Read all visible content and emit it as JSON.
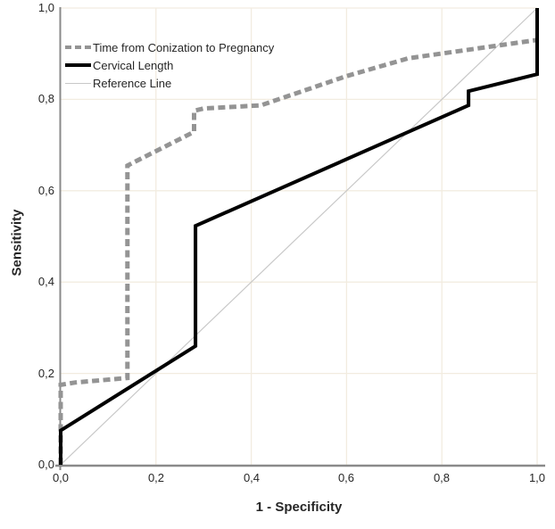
{
  "chart_data": {
    "type": "line",
    "title": "",
    "xlabel": "1 - Specificity",
    "ylabel": "Sensitivity",
    "xlim": [
      0,
      1
    ],
    "ylim": [
      0,
      1
    ],
    "grid": true,
    "legend_position": "top-left",
    "x_ticks": {
      "values": [
        0,
        0.2,
        0.4,
        0.6,
        0.8,
        1.0
      ],
      "labels": [
        "0,0",
        "0,2",
        "0,4",
        "0,6",
        "0,8",
        "1,0"
      ]
    },
    "y_ticks": {
      "values": [
        0,
        0.2,
        0.4,
        0.6,
        0.8,
        1.0
      ],
      "labels": [
        "0,0",
        "0,2",
        "0,4",
        "0,6",
        "0,8",
        "1,0"
      ]
    },
    "series": [
      {
        "name": "Time from Conization to Pregnancy",
        "style": "dashed",
        "color": "#949494",
        "width": 5,
        "points": [
          [
            0,
            0
          ],
          [
            0,
            0.175
          ],
          [
            0.03,
            0.18
          ],
          [
            0.14,
            0.19
          ],
          [
            0.14,
            0.655
          ],
          [
            0.28,
            0.729
          ],
          [
            0.28,
            0.775
          ],
          [
            0.3,
            0.78
          ],
          [
            0.42,
            0.787
          ],
          [
            0.6,
            0.851
          ],
          [
            0.73,
            0.89
          ],
          [
            1,
            0.93
          ]
        ]
      },
      {
        "name": "Cervical Length",
        "style": "solid",
        "color": "#000000",
        "width": 4,
        "points": [
          [
            0,
            0
          ],
          [
            0,
            0.075
          ],
          [
            0.283,
            0.26
          ],
          [
            0.283,
            0.523
          ],
          [
            0.856,
            0.787
          ],
          [
            0.856,
            0.818
          ],
          [
            1,
            0.855
          ],
          [
            1,
            1
          ]
        ]
      },
      {
        "name": "Reference Line",
        "style": "thin",
        "color": "#c8c8c8",
        "width": 1.2,
        "points": [
          [
            0,
            0
          ],
          [
            1,
            1
          ]
        ]
      }
    ]
  },
  "colors": {
    "background": "#ffffff",
    "grid": "#f2ece0",
    "axis": "#8a8a8a",
    "text": "#262626"
  }
}
